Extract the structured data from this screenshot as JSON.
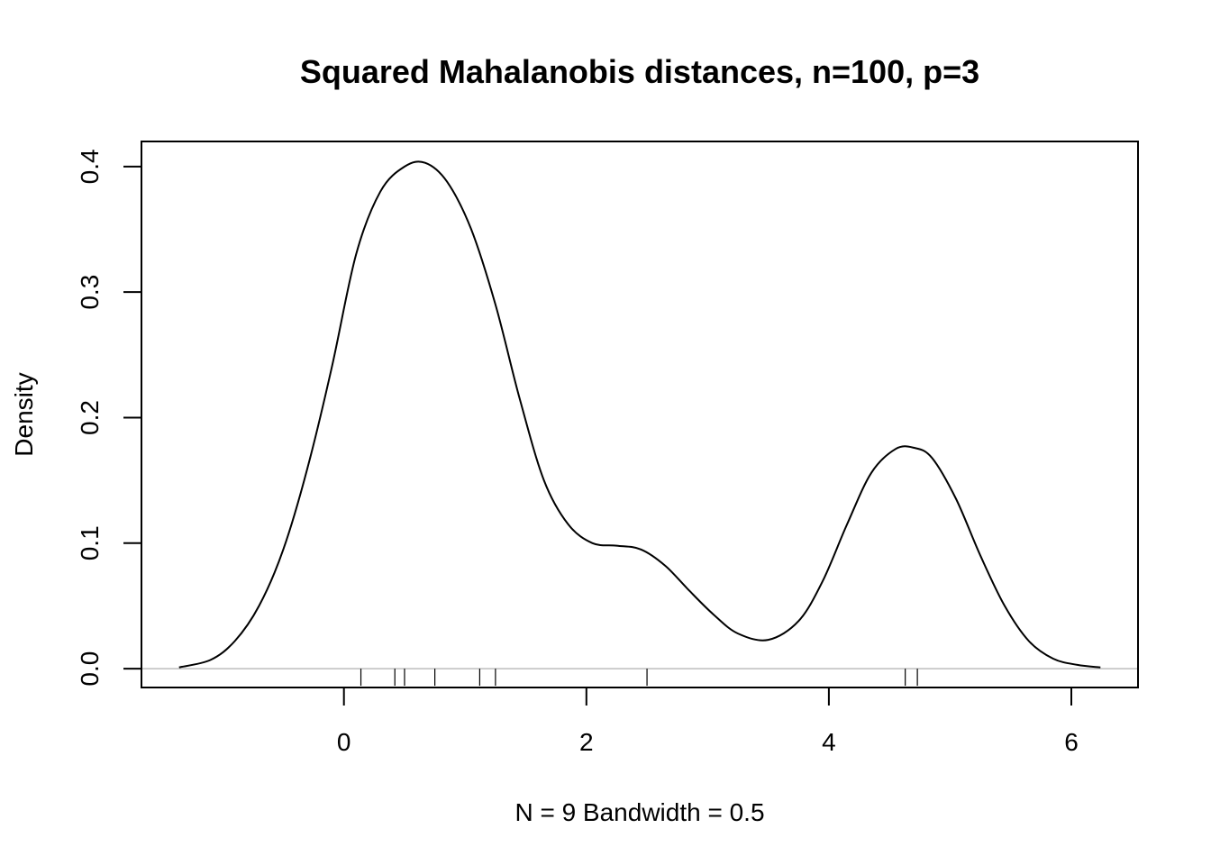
{
  "chart_data": {
    "type": "line",
    "title": "Squared Mahalanobis distances, n=100, p=3",
    "xlabel": "N = 9   Bandwidth = 0.5",
    "ylabel": "Density",
    "xlim": [
      -1.67,
      6.55
    ],
    "ylim": [
      -0.015,
      0.42
    ],
    "x_ticks": [
      0,
      2,
      4,
      6
    ],
    "x_tick_labels": [
      "0",
      "2",
      "4",
      "6"
    ],
    "y_ticks": [
      0.0,
      0.1,
      0.2,
      0.3,
      0.4
    ],
    "y_tick_labels": [
      "0.0",
      "0.1",
      "0.2",
      "0.3",
      "0.4"
    ],
    "grid": false,
    "baseline": 0,
    "baseline_color": "#bebebe",
    "line_color": "#000000",
    "series": [
      {
        "x": [
          -1.36,
          -1.1,
          -0.9,
          -0.7,
          -0.5,
          -0.3,
          -0.1,
          0.1,
          0.3,
          0.5,
          0.67,
          0.85,
          1.05,
          1.25,
          1.45,
          1.65,
          1.85,
          2.05,
          2.25,
          2.45,
          2.65,
          2.85,
          3.05,
          3.25,
          3.5,
          3.75,
          3.95,
          4.15,
          4.35,
          4.55,
          4.7,
          4.85,
          5.05,
          5.25,
          5.45,
          5.65,
          5.85,
          6.05,
          6.24
        ],
        "y": [
          0.001,
          0.007,
          0.022,
          0.05,
          0.095,
          0.16,
          0.24,
          0.33,
          0.38,
          0.4,
          0.403,
          0.388,
          0.35,
          0.29,
          0.215,
          0.15,
          0.115,
          0.1,
          0.098,
          0.095,
          0.082,
          0.062,
          0.043,
          0.028,
          0.023,
          0.038,
          0.07,
          0.115,
          0.156,
          0.175,
          0.176,
          0.168,
          0.135,
          0.09,
          0.05,
          0.022,
          0.008,
          0.003,
          0.001
        ]
      }
    ],
    "rug": [
      0.14,
      0.42,
      0.5,
      0.75,
      1.12,
      1.25,
      2.5,
      4.63,
      4.73
    ]
  }
}
